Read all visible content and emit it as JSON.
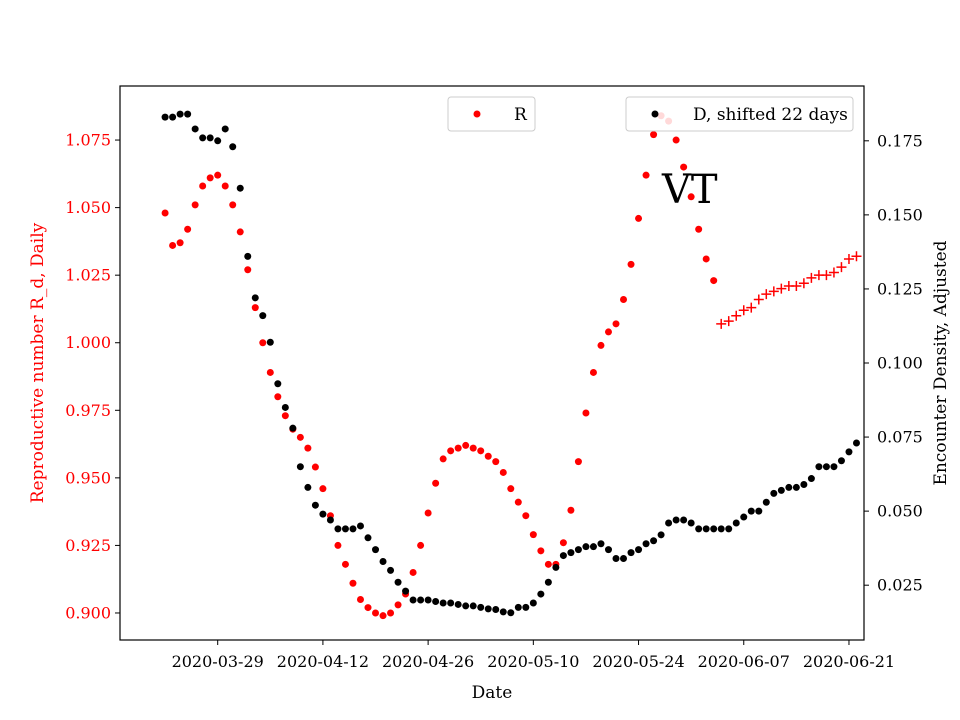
{
  "chart_data": {
    "type": "scatter",
    "xlabel": "Date",
    "ylabel_left": "Reproductive number R_d, Daily",
    "ylabel_right": "Encounter Density, Adjusted",
    "annotation": "VT",
    "colors": {
      "R": "#ff0000",
      "D": "#000000"
    },
    "xlim": [
      "2020-03-16",
      "2020-06-23"
    ],
    "ylim_left": [
      0.89,
      1.095
    ],
    "ylim_right": [
      0.0065,
      0.1935
    ],
    "x_ticks": [
      "2020-03-29",
      "2020-04-12",
      "2020-04-26",
      "2020-05-10",
      "2020-05-24",
      "2020-06-07",
      "2020-06-21"
    ],
    "y_left_ticks": [
      "0.900",
      "0.925",
      "0.950",
      "0.975",
      "1.000",
      "1.025",
      "1.050",
      "1.075"
    ],
    "y_right_ticks": [
      "0.025",
      "0.050",
      "0.075",
      "0.100",
      "0.125",
      "0.150",
      "0.175"
    ],
    "legend": [
      {
        "label": "R",
        "position": "top-center"
      },
      {
        "label": "D, shifted 22 days",
        "position": "top-right"
      }
    ],
    "series": [
      {
        "name": "R",
        "axis": "left",
        "marker": "dot",
        "points": [
          [
            "2020-03-22",
            1.048
          ],
          [
            "2020-03-23",
            1.036
          ],
          [
            "2020-03-24",
            1.037
          ],
          [
            "2020-03-25",
            1.042
          ],
          [
            "2020-03-26",
            1.051
          ],
          [
            "2020-03-27",
            1.058
          ],
          [
            "2020-03-28",
            1.061
          ],
          [
            "2020-03-29",
            1.062
          ],
          [
            "2020-03-30",
            1.058
          ],
          [
            "2020-03-31",
            1.051
          ],
          [
            "2020-04-01",
            1.041
          ],
          [
            "2020-04-02",
            1.027
          ],
          [
            "2020-04-03",
            1.013
          ],
          [
            "2020-04-04",
            1.0
          ],
          [
            "2020-04-05",
            0.989
          ],
          [
            "2020-04-06",
            0.98
          ],
          [
            "2020-04-07",
            0.973
          ],
          [
            "2020-04-08",
            0.968
          ],
          [
            "2020-04-09",
            0.965
          ],
          [
            "2020-04-10",
            0.961
          ],
          [
            "2020-04-11",
            0.954
          ],
          [
            "2020-04-12",
            0.946
          ],
          [
            "2020-04-13",
            0.936
          ],
          [
            "2020-04-14",
            0.925
          ],
          [
            "2020-04-15",
            0.918
          ],
          [
            "2020-04-16",
            0.911
          ],
          [
            "2020-04-17",
            0.905
          ],
          [
            "2020-04-18",
            0.902
          ],
          [
            "2020-04-19",
            0.9
          ],
          [
            "2020-04-20",
            0.899
          ],
          [
            "2020-04-21",
            0.9
          ],
          [
            "2020-04-22",
            0.903
          ],
          [
            "2020-04-23",
            0.907
          ],
          [
            "2020-04-24",
            0.915
          ],
          [
            "2020-04-25",
            0.925
          ],
          [
            "2020-04-26",
            0.937
          ],
          [
            "2020-04-27",
            0.948
          ],
          [
            "2020-04-28",
            0.957
          ],
          [
            "2020-04-29",
            0.96
          ],
          [
            "2020-04-30",
            0.961
          ],
          [
            "2020-05-01",
            0.962
          ],
          [
            "2020-05-02",
            0.961
          ],
          [
            "2020-05-03",
            0.96
          ],
          [
            "2020-05-04",
            0.958
          ],
          [
            "2020-05-05",
            0.956
          ],
          [
            "2020-05-06",
            0.952
          ],
          [
            "2020-05-07",
            0.946
          ],
          [
            "2020-05-08",
            0.941
          ],
          [
            "2020-05-09",
            0.936
          ],
          [
            "2020-05-10",
            0.929
          ],
          [
            "2020-05-11",
            0.923
          ],
          [
            "2020-05-12",
            0.918
          ],
          [
            "2020-05-13",
            0.918
          ],
          [
            "2020-05-14",
            0.926
          ],
          [
            "2020-05-15",
            0.938
          ],
          [
            "2020-05-16",
            0.956
          ],
          [
            "2020-05-17",
            0.974
          ],
          [
            "2020-05-18",
            0.989
          ],
          [
            "2020-05-19",
            0.999
          ],
          [
            "2020-05-20",
            1.004
          ],
          [
            "2020-05-21",
            1.007
          ],
          [
            "2020-05-22",
            1.016
          ],
          [
            "2020-05-23",
            1.029
          ],
          [
            "2020-05-24",
            1.046
          ],
          [
            "2020-05-25",
            1.062
          ],
          [
            "2020-05-26",
            1.077
          ],
          [
            "2020-05-27",
            1.084
          ],
          [
            "2020-05-28",
            1.082
          ],
          [
            "2020-05-29",
            1.075
          ],
          [
            "2020-05-30",
            1.065
          ],
          [
            "2020-05-31",
            1.054
          ],
          [
            "2020-06-01",
            1.042
          ],
          [
            "2020-06-02",
            1.031
          ],
          [
            "2020-06-03",
            1.023
          ]
        ]
      },
      {
        "name": "R",
        "axis": "left",
        "marker": "plus",
        "points": [
          [
            "2020-06-04",
            1.007
          ],
          [
            "2020-06-05",
            1.008
          ],
          [
            "2020-06-06",
            1.01
          ],
          [
            "2020-06-07",
            1.012
          ],
          [
            "2020-06-08",
            1.013
          ],
          [
            "2020-06-09",
            1.016
          ],
          [
            "2020-06-10",
            1.018
          ],
          [
            "2020-06-11",
            1.019
          ],
          [
            "2020-06-12",
            1.02
          ],
          [
            "2020-06-13",
            1.021
          ],
          [
            "2020-06-14",
            1.021
          ],
          [
            "2020-06-15",
            1.022
          ],
          [
            "2020-06-16",
            1.024
          ],
          [
            "2020-06-17",
            1.025
          ],
          [
            "2020-06-18",
            1.025
          ],
          [
            "2020-06-19",
            1.026
          ],
          [
            "2020-06-20",
            1.028
          ],
          [
            "2020-06-21",
            1.031
          ],
          [
            "2020-06-22",
            1.032
          ]
        ]
      },
      {
        "name": "D, shifted 22 days",
        "axis": "right",
        "marker": "dot",
        "points": [
          [
            "2020-03-22",
            0.183
          ],
          [
            "2020-03-23",
            0.183
          ],
          [
            "2020-03-24",
            0.184
          ],
          [
            "2020-03-25",
            0.184
          ],
          [
            "2020-03-26",
            0.179
          ],
          [
            "2020-03-27",
            0.176
          ],
          [
            "2020-03-28",
            0.176
          ],
          [
            "2020-03-29",
            0.175
          ],
          [
            "2020-03-30",
            0.179
          ],
          [
            "2020-03-31",
            0.173
          ],
          [
            "2020-04-01",
            0.159
          ],
          [
            "2020-04-02",
            0.136
          ],
          [
            "2020-04-03",
            0.122
          ],
          [
            "2020-04-04",
            0.116
          ],
          [
            "2020-04-05",
            0.107
          ],
          [
            "2020-04-06",
            0.093
          ],
          [
            "2020-04-07",
            0.085
          ],
          [
            "2020-04-08",
            0.078
          ],
          [
            "2020-04-09",
            0.065
          ],
          [
            "2020-04-10",
            0.058
          ],
          [
            "2020-04-11",
            0.052
          ],
          [
            "2020-04-12",
            0.049
          ],
          [
            "2020-04-13",
            0.047
          ],
          [
            "2020-04-14",
            0.044
          ],
          [
            "2020-04-15",
            0.044
          ],
          [
            "2020-04-16",
            0.044
          ],
          [
            "2020-04-17",
            0.045
          ],
          [
            "2020-04-18",
            0.041
          ],
          [
            "2020-04-19",
            0.037
          ],
          [
            "2020-04-20",
            0.033
          ],
          [
            "2020-04-21",
            0.03
          ],
          [
            "2020-04-22",
            0.026
          ],
          [
            "2020-04-23",
            0.023
          ],
          [
            "2020-04-24",
            0.02
          ],
          [
            "2020-04-25",
            0.02
          ],
          [
            "2020-04-26",
            0.02
          ],
          [
            "2020-04-27",
            0.0195
          ],
          [
            "2020-04-28",
            0.019
          ],
          [
            "2020-04-29",
            0.019
          ],
          [
            "2020-04-30",
            0.0185
          ],
          [
            "2020-05-01",
            0.018
          ],
          [
            "2020-05-02",
            0.018
          ],
          [
            "2020-05-03",
            0.0175
          ],
          [
            "2020-05-04",
            0.017
          ],
          [
            "2020-05-05",
            0.0168
          ],
          [
            "2020-05-06",
            0.016
          ],
          [
            "2020-05-07",
            0.0157
          ],
          [
            "2020-05-08",
            0.0175
          ],
          [
            "2020-05-09",
            0.0175
          ],
          [
            "2020-05-10",
            0.019
          ],
          [
            "2020-05-11",
            0.022
          ],
          [
            "2020-05-12",
            0.026
          ],
          [
            "2020-05-13",
            0.031
          ],
          [
            "2020-05-14",
            0.035
          ],
          [
            "2020-05-15",
            0.036
          ],
          [
            "2020-05-16",
            0.037
          ],
          [
            "2020-05-17",
            0.038
          ],
          [
            "2020-05-18",
            0.038
          ],
          [
            "2020-05-19",
            0.039
          ],
          [
            "2020-05-20",
            0.037
          ],
          [
            "2020-05-21",
            0.034
          ],
          [
            "2020-05-22",
            0.034
          ],
          [
            "2020-05-23",
            0.036
          ],
          [
            "2020-05-24",
            0.037
          ],
          [
            "2020-05-25",
            0.039
          ],
          [
            "2020-05-26",
            0.04
          ],
          [
            "2020-05-27",
            0.042
          ],
          [
            "2020-05-28",
            0.046
          ],
          [
            "2020-05-29",
            0.047
          ],
          [
            "2020-05-30",
            0.047
          ],
          [
            "2020-05-31",
            0.046
          ],
          [
            "2020-06-01",
            0.044
          ],
          [
            "2020-06-02",
            0.044
          ],
          [
            "2020-06-03",
            0.044
          ],
          [
            "2020-06-04",
            0.044
          ],
          [
            "2020-06-05",
            0.044
          ],
          [
            "2020-06-06",
            0.046
          ],
          [
            "2020-06-07",
            0.048
          ],
          [
            "2020-06-08",
            0.05
          ],
          [
            "2020-06-09",
            0.05
          ],
          [
            "2020-06-10",
            0.053
          ],
          [
            "2020-06-11",
            0.056
          ],
          [
            "2020-06-12",
            0.057
          ],
          [
            "2020-06-13",
            0.058
          ],
          [
            "2020-06-14",
            0.058
          ],
          [
            "2020-06-15",
            0.059
          ],
          [
            "2020-06-16",
            0.061
          ],
          [
            "2020-06-17",
            0.065
          ],
          [
            "2020-06-18",
            0.065
          ],
          [
            "2020-06-19",
            0.065
          ],
          [
            "2020-06-20",
            0.067
          ],
          [
            "2020-06-21",
            0.07
          ],
          [
            "2020-06-22",
            0.073
          ]
        ]
      }
    ]
  }
}
